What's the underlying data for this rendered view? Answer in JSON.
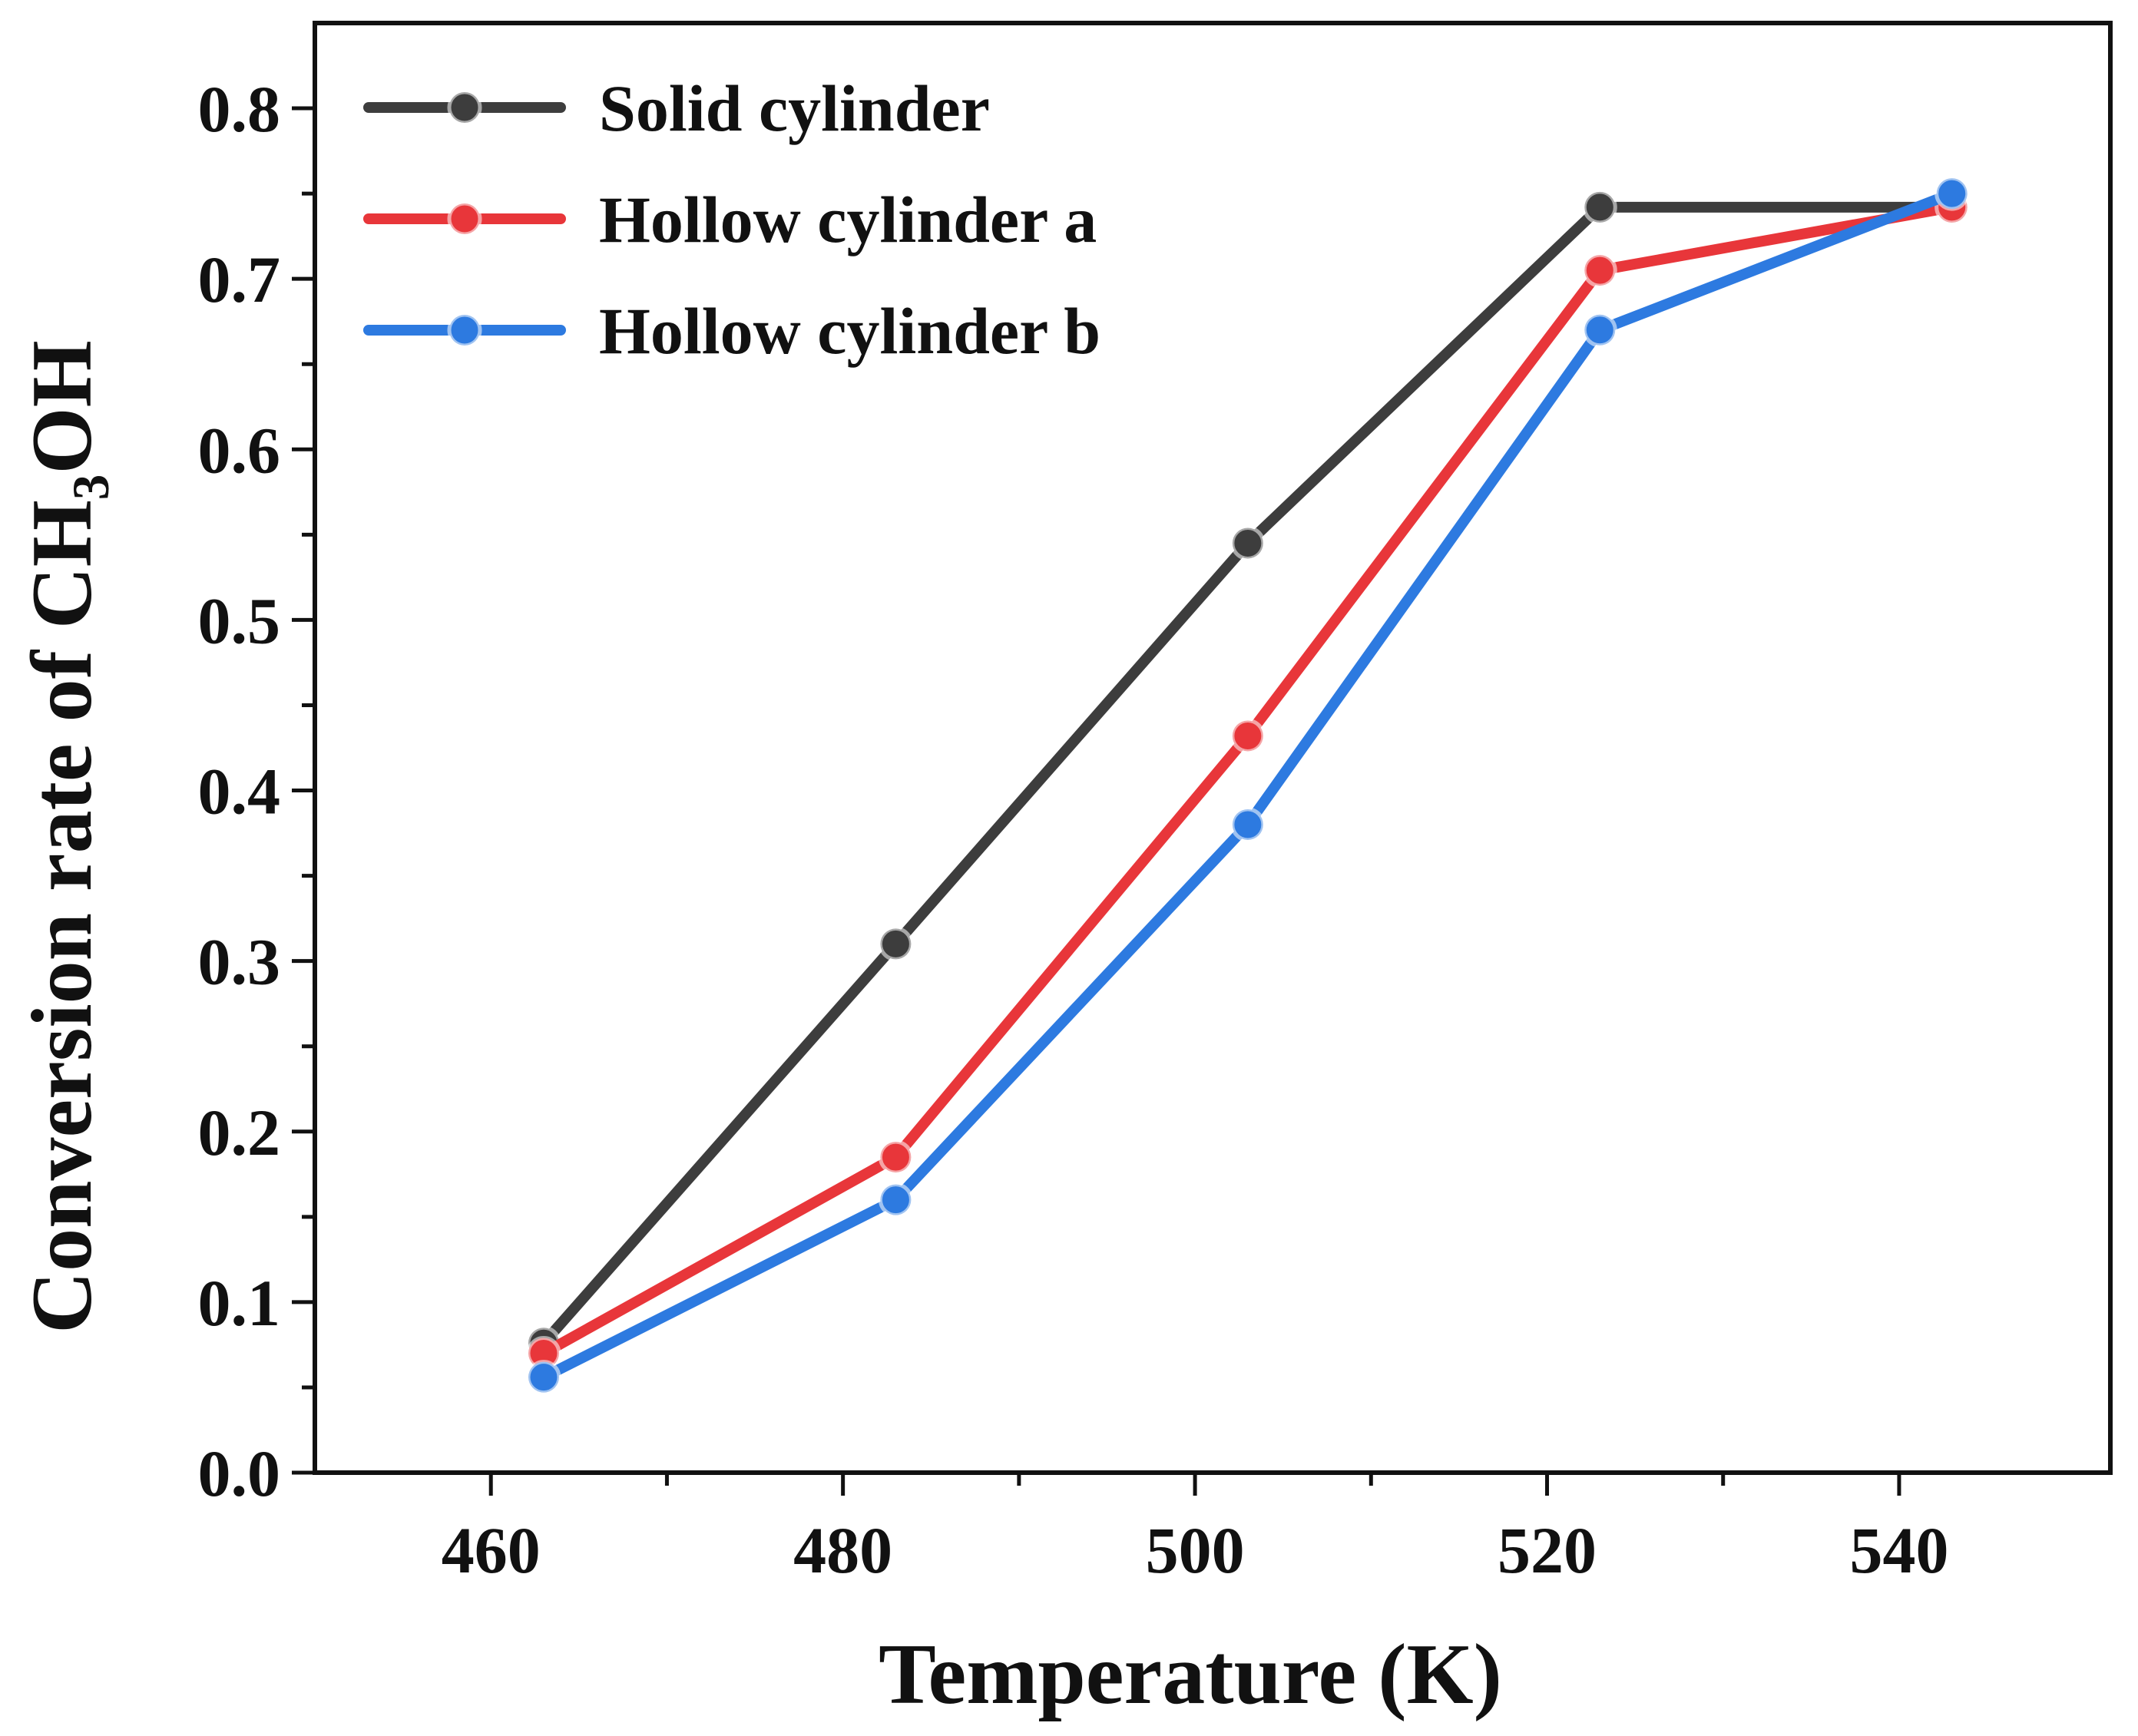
{
  "chart_data": {
    "type": "line",
    "xlabel": "Temperature (K)",
    "ylabel": "Conversion rate of CH₃OH",
    "xlim": [
      450,
      552
    ],
    "ylim": [
      0,
      0.85
    ],
    "x_ticks": [
      "460",
      "480",
      "500",
      "520",
      "540"
    ],
    "x_tick_values": [
      460,
      480,
      500,
      520,
      540
    ],
    "x_minor_ticks": [
      470,
      490,
      510,
      530
    ],
    "y_ticks": [
      "0.0",
      "0.1",
      "0.2",
      "0.3",
      "0.4",
      "0.5",
      "0.6",
      "0.7",
      "0.8"
    ],
    "y_tick_values": [
      0.0,
      0.1,
      0.2,
      0.3,
      0.4,
      0.5,
      0.6,
      0.7,
      0.8
    ],
    "y_minor_ticks": [
      0.05,
      0.15,
      0.25,
      0.35,
      0.45,
      0.55,
      0.65,
      0.75
    ],
    "grid": false,
    "legend_position": "top-left",
    "x": [
      463,
      483,
      503,
      523,
      543
    ],
    "series": [
      {
        "name": "Solid cylinder",
        "color": "#3d3d3d",
        "values": [
          0.076,
          0.31,
          0.545,
          0.742,
          0.742
        ]
      },
      {
        "name": "Hollow cylinder a",
        "color": "#e8363a",
        "values": [
          0.07,
          0.185,
          0.432,
          0.705,
          0.742
        ]
      },
      {
        "name": "Hollow cylinder b",
        "color": "#2d7ae0",
        "values": [
          0.056,
          0.16,
          0.38,
          0.67,
          0.75
        ]
      }
    ]
  }
}
